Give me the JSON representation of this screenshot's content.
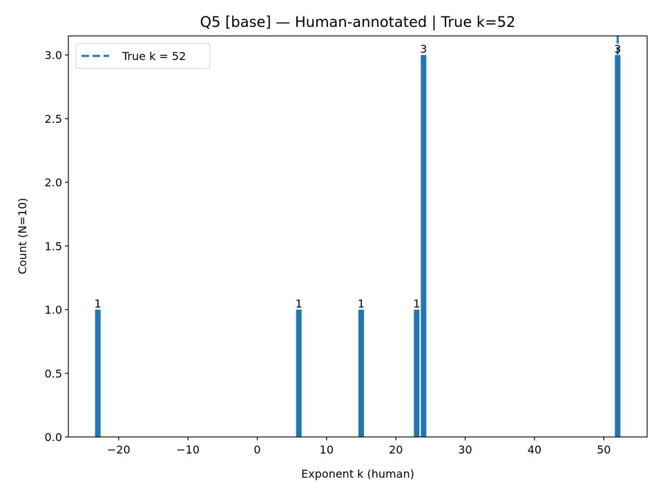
{
  "chart_data": {
    "type": "bar",
    "title": "Q5 [base] — Human-annotated | True k=52",
    "xlabel": "Exponent k (human)",
    "ylabel": "Count (N=10)",
    "x": [
      -23,
      6,
      15,
      23,
      24,
      52
    ],
    "values": [
      1,
      1,
      1,
      1,
      3,
      3
    ],
    "data_labels": [
      "1",
      "1",
      "1",
      "1",
      "3",
      "3"
    ],
    "xlim": [
      -27.25,
      56.25
    ],
    "ylim": [
      0,
      3.15
    ],
    "xticks": [
      -20,
      -10,
      0,
      10,
      20,
      30,
      40,
      50
    ],
    "xtick_labels": [
      "−20",
      "−10",
      "0",
      "10",
      "20",
      "30",
      "40",
      "50"
    ],
    "yticks": [
      0.0,
      0.5,
      1.0,
      1.5,
      2.0,
      2.5,
      3.0
    ],
    "ytick_labels": [
      "0.0",
      "0.5",
      "1.0",
      "1.5",
      "2.0",
      "2.5",
      "3.0"
    ],
    "bar_width": 0.8,
    "bar_color": "#1f77b4",
    "reference_line": {
      "x": 52,
      "label": "True k = 52",
      "style": "dashed",
      "color": "#1f77b4"
    },
    "legend_placement": "top-left",
    "grid": false
  }
}
